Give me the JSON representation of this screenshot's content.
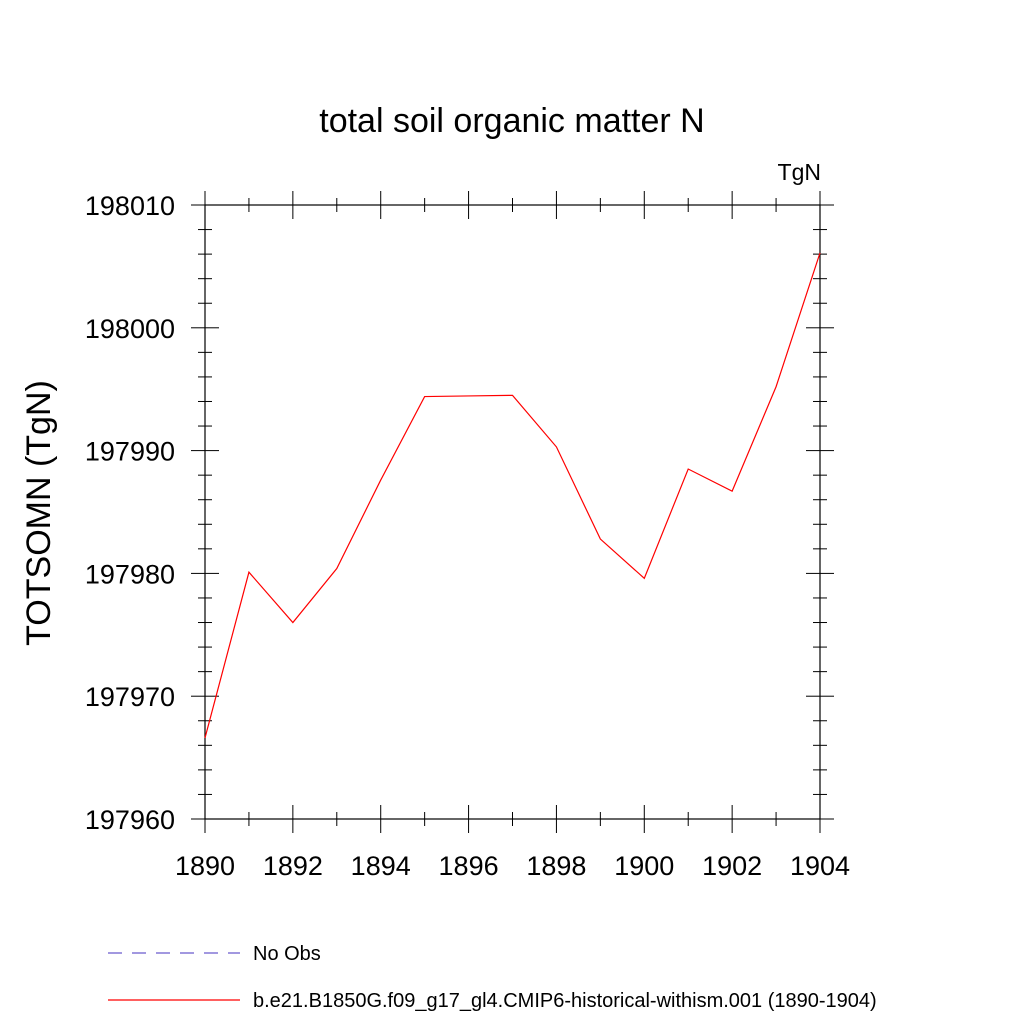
{
  "chart_data": {
    "type": "line",
    "title": "total soil organic matter N",
    "units_label": "TgN",
    "ylabel": "TOTSOMN  (TgN)",
    "xlabel": "",
    "xlim": [
      1890,
      1904
    ],
    "ylim": [
      197960,
      198010
    ],
    "x_ticks": [
      1890,
      1892,
      1894,
      1896,
      1898,
      1900,
      1902,
      1904
    ],
    "y_ticks": [
      197960,
      197970,
      197980,
      197990,
      198000,
      198010
    ],
    "x_minor_step": 1,
    "y_minor_step": 2,
    "grid": false,
    "legend_position": "bottom",
    "series": [
      {
        "name": "No Obs",
        "color": "#6a5acd",
        "dash": "dashed",
        "x": [],
        "y": []
      },
      {
        "name": "b.e21.B1850G.f09_g17_gl4.CMIP6-historical-withism.001 (1890-1904)",
        "color": "#ff0000",
        "dash": "solid",
        "x": [
          1890,
          1891,
          1892,
          1893,
          1894,
          1895,
          1896,
          1897,
          1898,
          1899,
          1900,
          1901,
          1902,
          1903,
          1904
        ],
        "y": [
          197966.6,
          197980.1,
          197976.0,
          197980.4,
          197987.6,
          197994.4,
          197994.45,
          197994.5,
          197990.3,
          197982.8,
          197979.6,
          197988.5,
          197986.7,
          197995.2,
          198006.1
        ]
      }
    ]
  }
}
